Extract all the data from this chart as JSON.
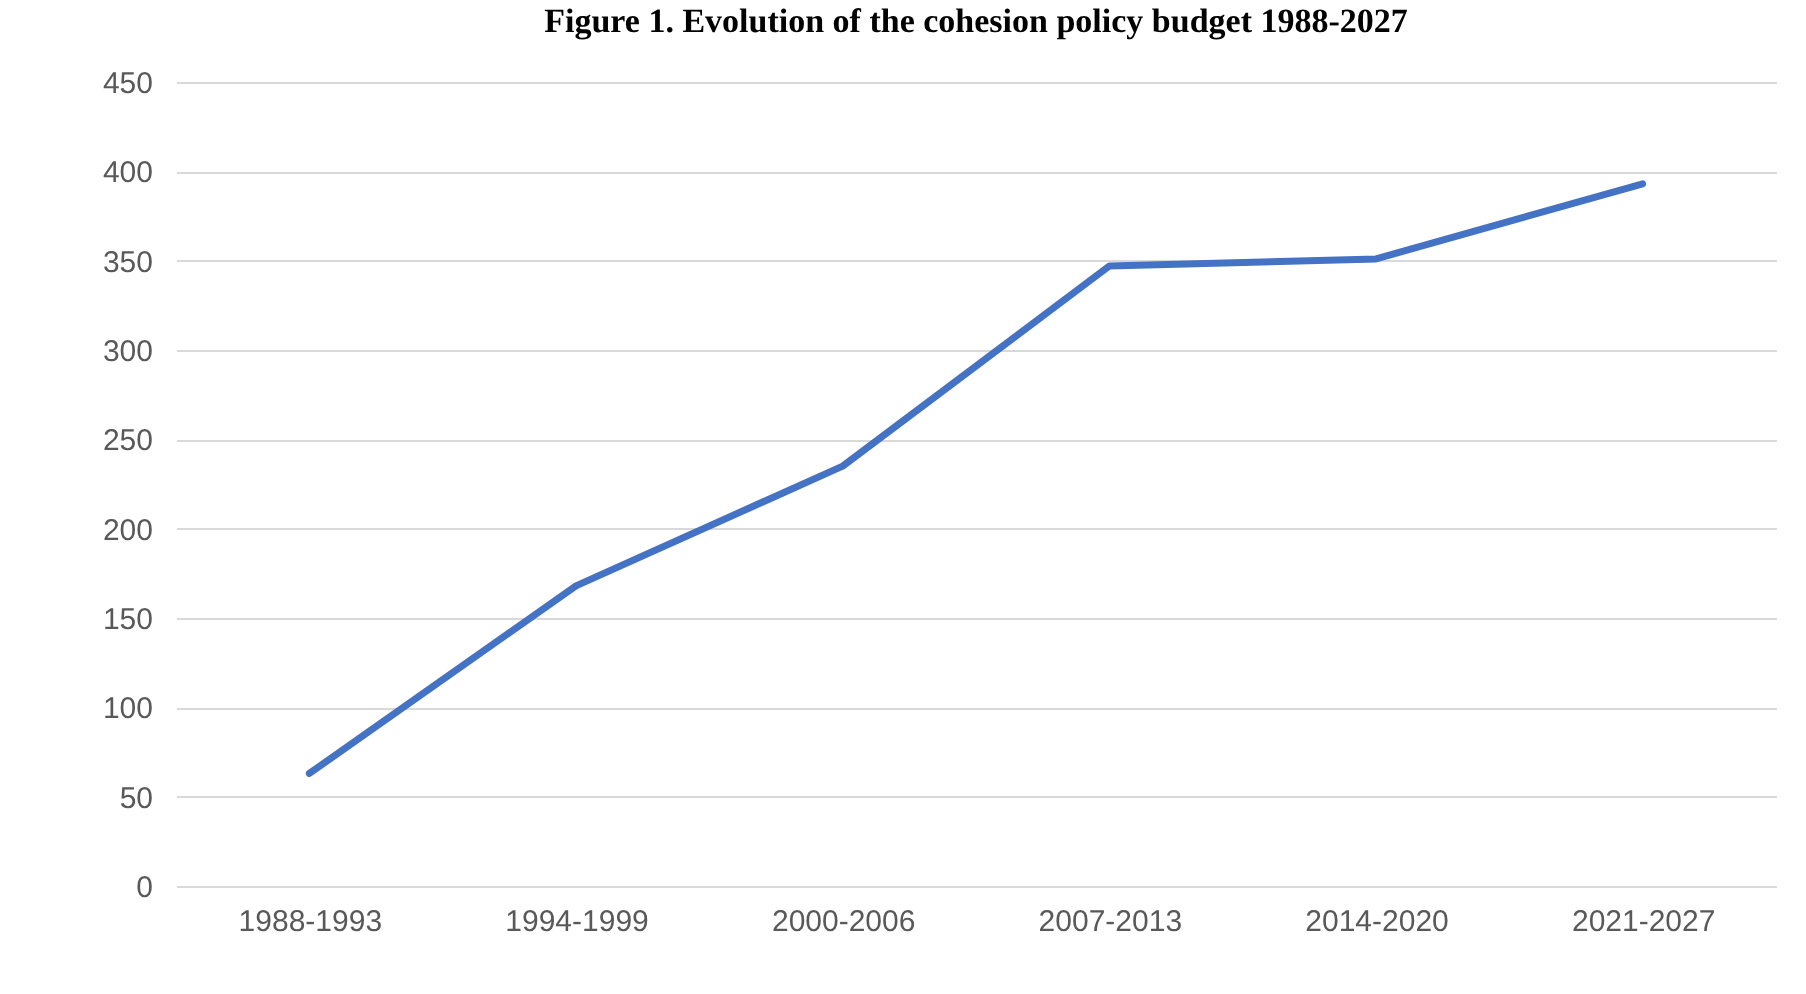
{
  "chart_data": {
    "type": "line",
    "title": "Figure 1. Evolution of the cohesion policy budget 1988-2027",
    "categories": [
      "1988-1993",
      "1994-1999",
      "2000-2006",
      "2007-2013",
      "2014-2020",
      "2021-2027"
    ],
    "series": [
      {
        "color": "#4472c4",
        "values": [
          63,
          168,
          235,
          347,
          351,
          393
        ]
      }
    ],
    "ylim": [
      0,
      450
    ],
    "yticks": [
      0,
      50,
      100,
      150,
      200,
      250,
      300,
      350,
      400,
      450
    ],
    "grid": "y",
    "marker": "none",
    "line_style": "solid"
  }
}
